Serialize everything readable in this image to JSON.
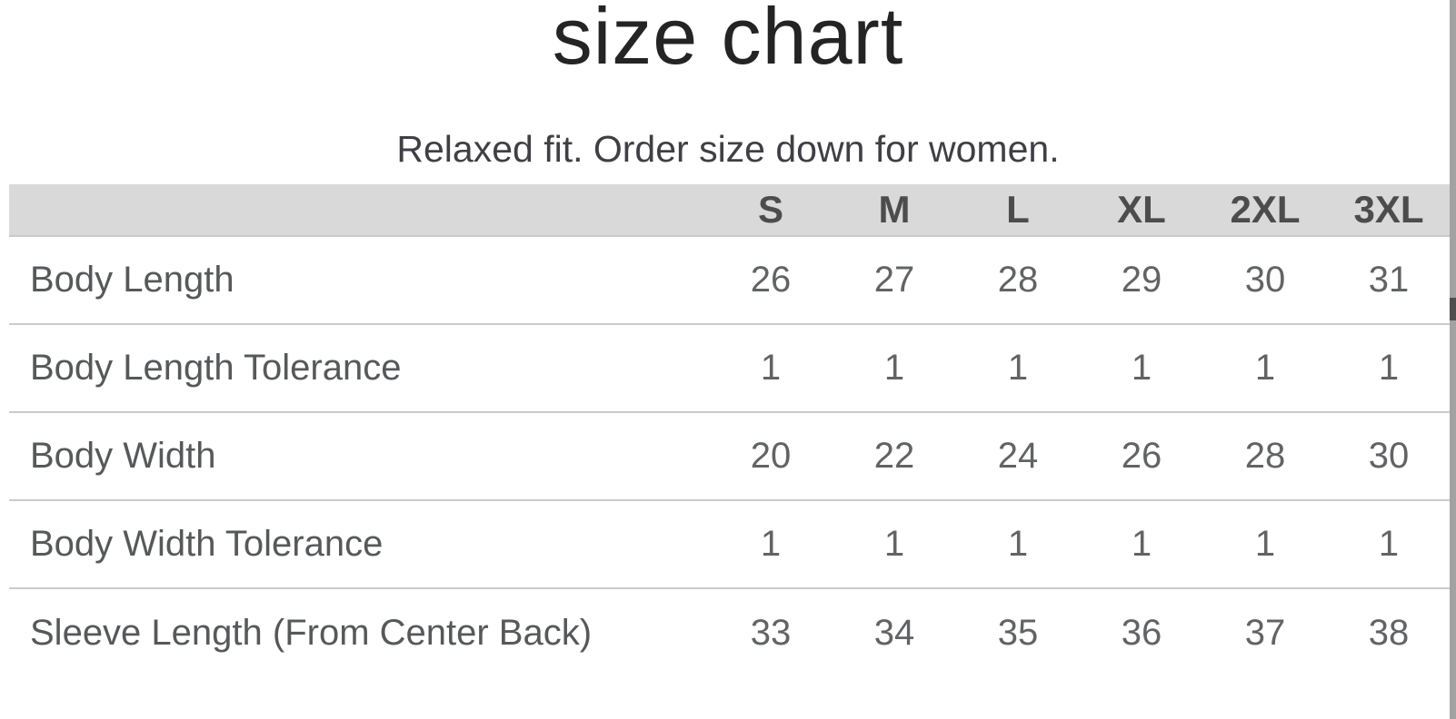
{
  "page": {
    "title": "size chart",
    "subtitle": "Relaxed fit. Order size down for women."
  },
  "chart_data": {
    "type": "table",
    "title": "size chart",
    "subtitle": "Relaxed fit. Order size down for women.",
    "columns": [
      "S",
      "M",
      "L",
      "XL",
      "2XL",
      "3XL"
    ],
    "rows": [
      {
        "label": "Body Length",
        "values": [
          26,
          27,
          28,
          29,
          30,
          31
        ]
      },
      {
        "label": "Body Length Tolerance",
        "values": [
          1,
          1,
          1,
          1,
          1,
          1
        ]
      },
      {
        "label": "Body Width",
        "values": [
          20,
          22,
          24,
          26,
          28,
          30
        ]
      },
      {
        "label": "Body Width Tolerance",
        "values": [
          1,
          1,
          1,
          1,
          1,
          1
        ]
      },
      {
        "label": "Sleeve Length (From Center Back)",
        "values": [
          33,
          34,
          35,
          36,
          37,
          38
        ]
      }
    ],
    "layout_hints": {
      "grid": "horizontal-dividers-only",
      "header_fill": "#d9d9d9",
      "last_row_has_no_bottom_divider": true
    }
  },
  "colors": {
    "background": "#ffffff",
    "title_text": "#242424",
    "subtitle_text": "#3f3f45",
    "header_bg": "#d9d9d9",
    "header_text": "#4c4c4c",
    "row_label_text": "#56585a",
    "value_text": "#616365",
    "divider": "#cbcbcb",
    "scrollbar_track": "#a2a2a2",
    "scrollbar_thumb": "#4e4e4e"
  }
}
